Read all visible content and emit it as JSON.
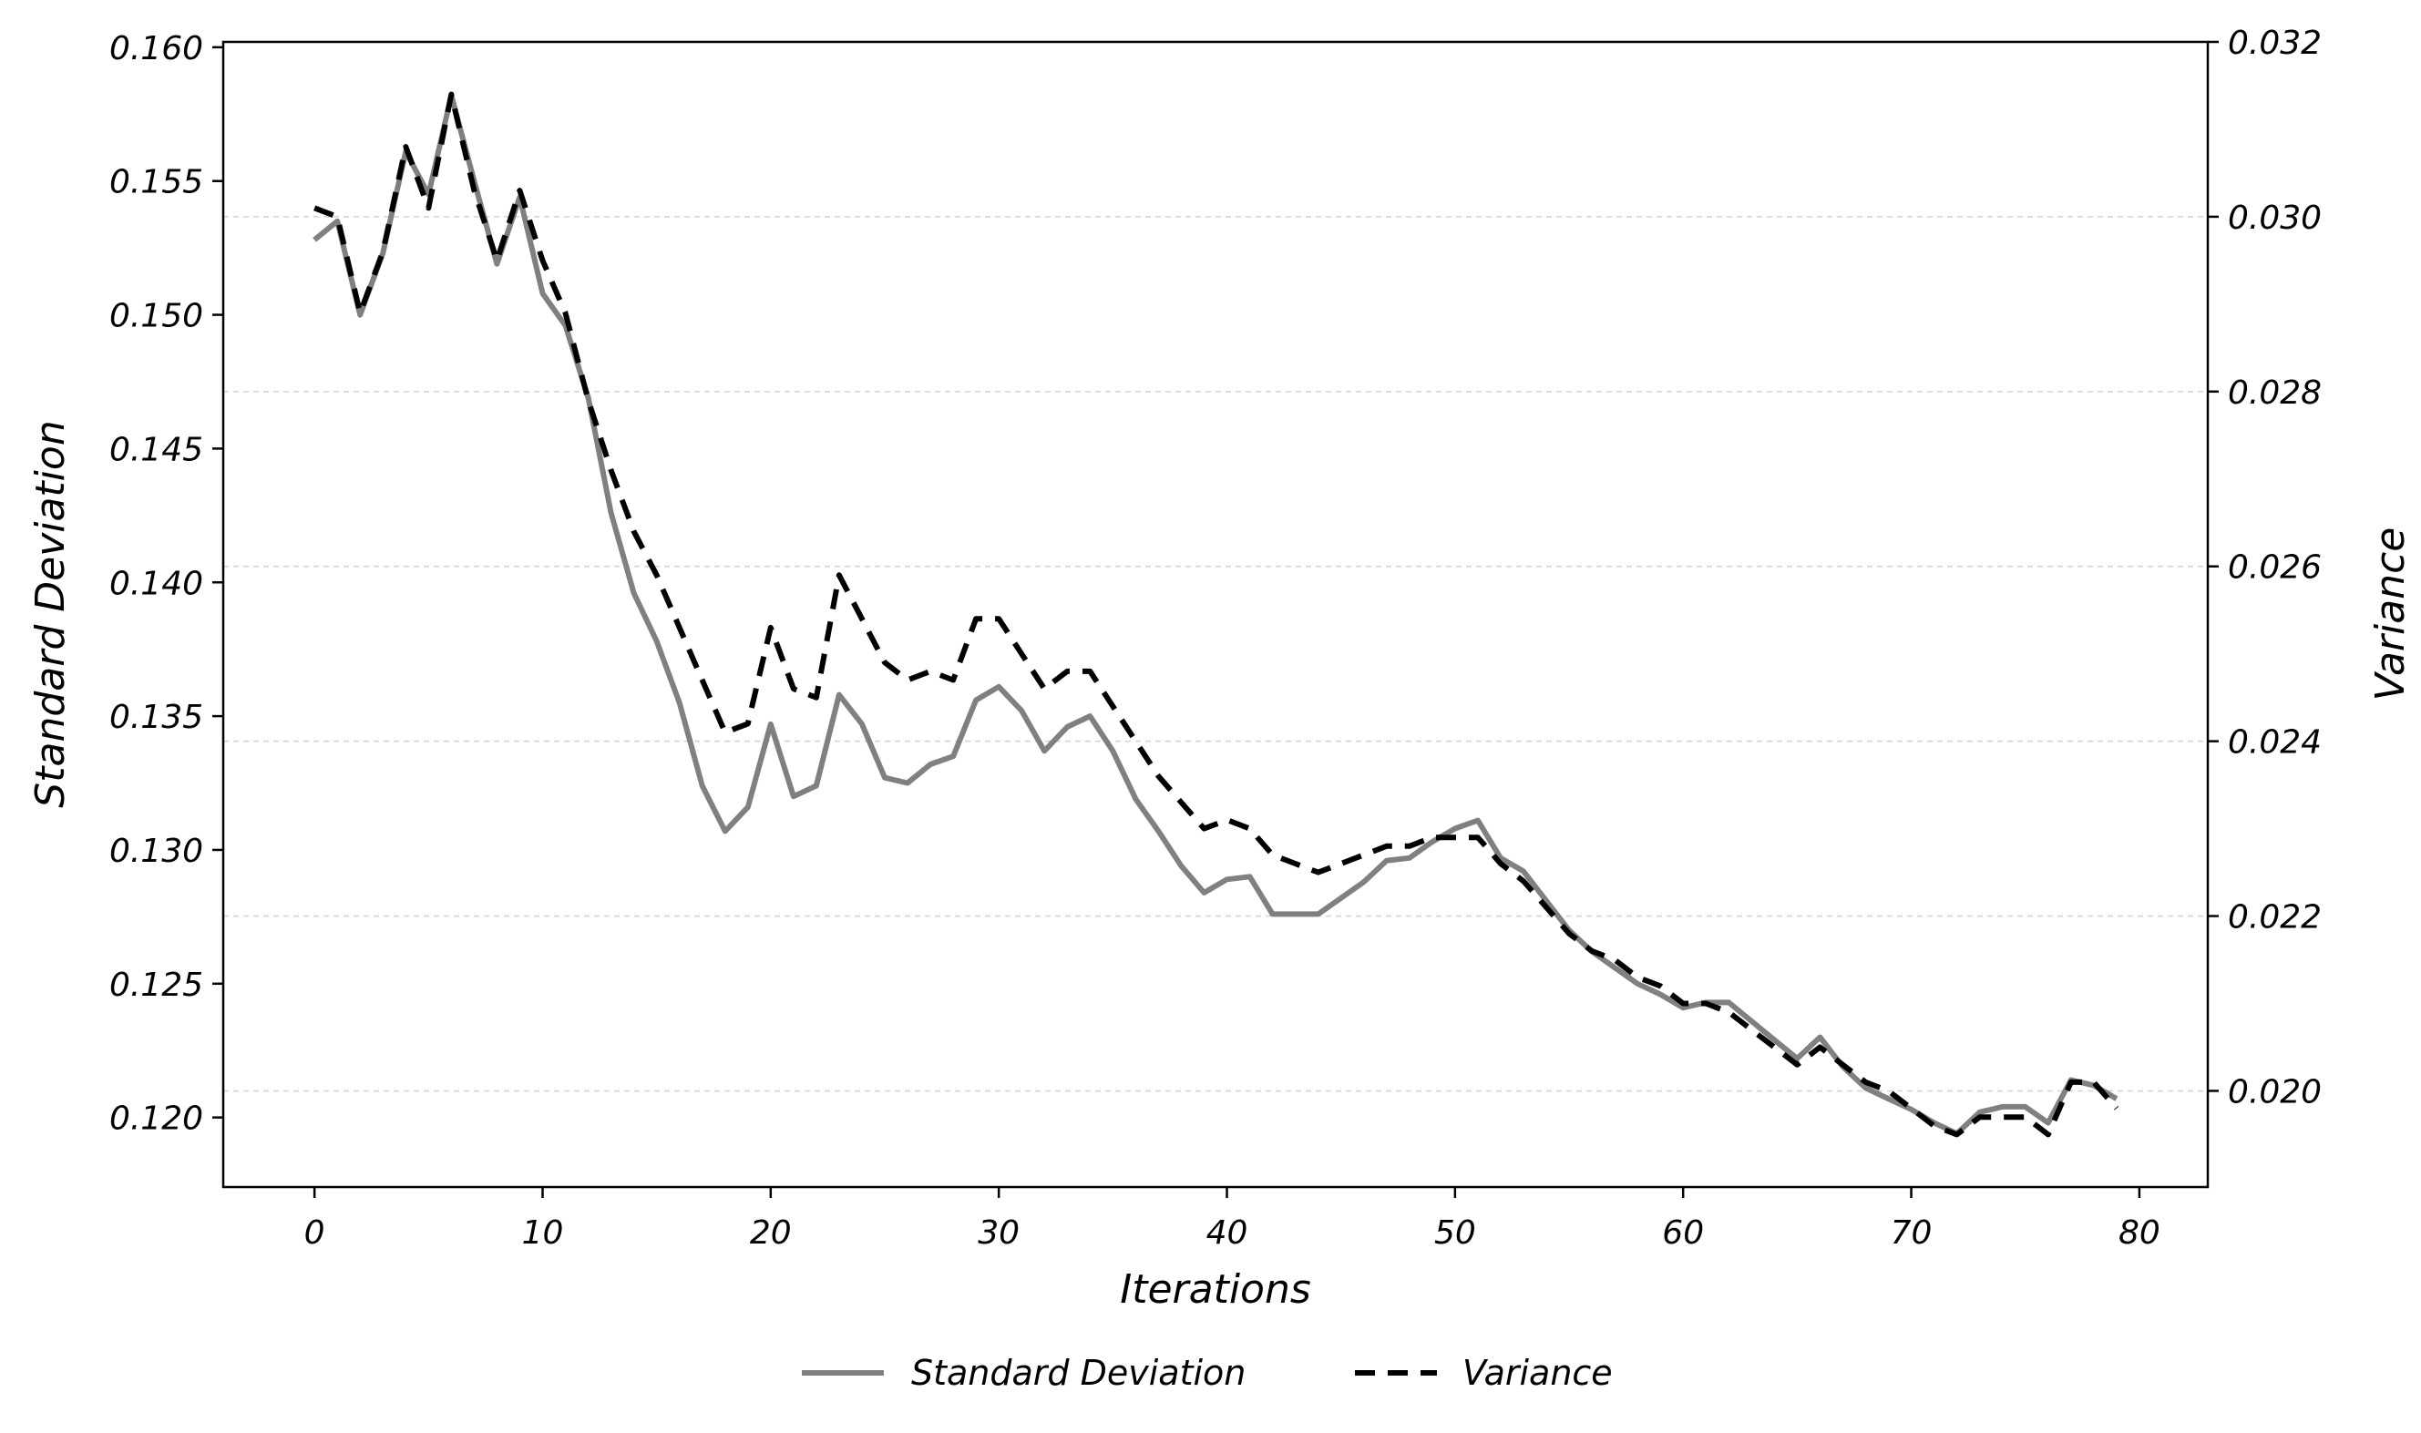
{
  "chart_data": {
    "type": "line",
    "title": "",
    "xlabel": "Iterations",
    "ylabel_left": "Standard Deviation",
    "ylabel_right": "Variance",
    "xlim": [
      -4,
      83
    ],
    "ylim_left": [
      0.1174,
      0.1602
    ],
    "ylim_right": [
      0.0189,
      0.032
    ],
    "x_ticks": [
      0,
      10,
      20,
      30,
      40,
      50,
      60,
      70,
      80
    ],
    "x_tick_labels": [
      "0",
      "10",
      "20",
      "30",
      "40",
      "50",
      "60",
      "70",
      "80"
    ],
    "y_left_ticks": [
      0.12,
      0.125,
      0.13,
      0.135,
      0.14,
      0.145,
      0.15,
      0.155,
      0.16
    ],
    "y_left_tick_labels": [
      "0.120",
      "0.125",
      "0.130",
      "0.135",
      "0.140",
      "0.145",
      "0.150",
      "0.155",
      "0.160"
    ],
    "y_right_ticks": [
      0.02,
      0.022,
      0.024,
      0.026,
      0.028,
      0.03,
      0.032
    ],
    "y_right_tick_labels": [
      "0.020",
      "0.022",
      "0.024",
      "0.026",
      "0.028",
      "0.030",
      "0.032"
    ],
    "grid": "horizontal dashed at right-axis ticks",
    "legend_position": "bottom-center",
    "series": [
      {
        "name": "Standard Deviation",
        "axis": "left",
        "color": "#808080",
        "style": "solid",
        "x": [
          0,
          1,
          2,
          3,
          4,
          5,
          6,
          7,
          8,
          9,
          10,
          11,
          12,
          13,
          14,
          15,
          16,
          17,
          18,
          19,
          20,
          21,
          22,
          23,
          24,
          25,
          26,
          27,
          28,
          29,
          30,
          31,
          32,
          33,
          34,
          35,
          36,
          37,
          38,
          39,
          40,
          41,
          42,
          43,
          44,
          45,
          46,
          47,
          48,
          49,
          50,
          51,
          52,
          53,
          54,
          55,
          56,
          57,
          58,
          59,
          60,
          61,
          62,
          63,
          64,
          65,
          66,
          67,
          68,
          69,
          70,
          71,
          72,
          73,
          74,
          75,
          76,
          77,
          78,
          79
        ],
        "y": [
          0.1528,
          0.1535,
          0.15,
          0.1523,
          0.1561,
          0.1545,
          0.1582,
          0.155,
          0.1519,
          0.1544,
          0.1508,
          0.1496,
          0.1469,
          0.1426,
          0.1396,
          0.1378,
          0.1355,
          0.1324,
          0.1307,
          0.1316,
          0.1347,
          0.132,
          0.1324,
          0.1358,
          0.1347,
          0.1327,
          0.1325,
          0.1332,
          0.1335,
          0.1356,
          0.1361,
          0.1352,
          0.1337,
          0.1346,
          0.135,
          0.1337,
          0.1319,
          0.1307,
          0.1294,
          0.1284,
          0.1289,
          0.129,
          0.1276,
          0.1276,
          0.1276,
          0.1282,
          0.1288,
          0.1296,
          0.1297,
          0.1303,
          0.1308,
          0.1311,
          0.1297,
          0.1292,
          0.1281,
          0.127,
          0.1262,
          0.1256,
          0.125,
          0.1246,
          0.1241,
          0.1243,
          0.1243,
          0.1236,
          0.1229,
          0.1222,
          0.123,
          0.1219,
          0.1211,
          0.1207,
          0.1203,
          0.1198,
          0.1194,
          0.1202,
          0.1204,
          0.1204,
          0.1198,
          0.1214,
          0.1212,
          0.1207
        ]
      },
      {
        "name": "Variance",
        "axis": "right",
        "color": "#000000",
        "style": "dashed",
        "x": [
          0,
          1,
          2,
          3,
          4,
          5,
          6,
          7,
          8,
          9,
          10,
          11,
          12,
          13,
          14,
          15,
          16,
          17,
          18,
          19,
          20,
          21,
          22,
          23,
          24,
          25,
          26,
          27,
          28,
          29,
          30,
          31,
          32,
          33,
          34,
          35,
          36,
          37,
          38,
          39,
          40,
          41,
          42,
          43,
          44,
          45,
          46,
          47,
          48,
          49,
          50,
          51,
          52,
          53,
          54,
          55,
          56,
          57,
          58,
          59,
          60,
          61,
          62,
          63,
          64,
          65,
          66,
          67,
          68,
          69,
          70,
          71,
          72,
          73,
          74,
          75,
          76,
          77,
          78,
          79
        ],
        "y": [
          0.0301,
          0.03,
          0.0289,
          0.0296,
          0.0308,
          0.0301,
          0.0314,
          0.0303,
          0.0295,
          0.0303,
          0.0295,
          0.0289,
          0.0279,
          0.0271,
          0.0264,
          0.0259,
          0.0253,
          0.0247,
          0.0241,
          0.0242,
          0.0253,
          0.0246,
          0.0245,
          0.0259,
          0.0254,
          0.0249,
          0.0247,
          0.0248,
          0.0247,
          0.0254,
          0.0254,
          0.025,
          0.0246,
          0.0248,
          0.0248,
          0.0244,
          0.024,
          0.0236,
          0.0233,
          0.023,
          0.0231,
          0.023,
          0.0227,
          0.0226,
          0.0225,
          0.0226,
          0.0227,
          0.0228,
          0.0228,
          0.0229,
          0.0229,
          0.0229,
          0.0226,
          0.0224,
          0.0221,
          0.0218,
          0.0216,
          0.0215,
          0.0213,
          0.0212,
          0.021,
          0.021,
          0.0209,
          0.0207,
          0.0205,
          0.0203,
          0.0205,
          0.0203,
          0.0201,
          0.02,
          0.0198,
          0.0196,
          0.0195,
          0.0197,
          0.0197,
          0.0197,
          0.0195,
          0.0201,
          0.0201,
          0.0198
        ]
      }
    ]
  }
}
